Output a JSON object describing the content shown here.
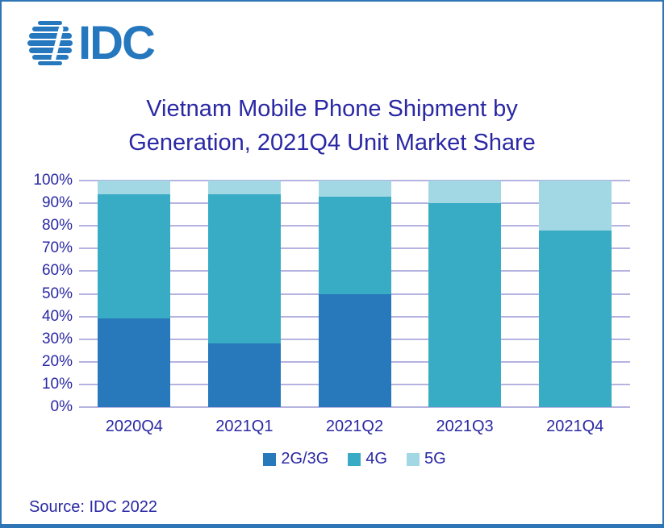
{
  "colors": {
    "brand-blue": "#2577BE",
    "border-blue": "#2E75B6",
    "text-navy": "#2A28A4",
    "grid-lavender": "#B5B3E0"
  },
  "logo": {
    "text": "IDC"
  },
  "title": {
    "line1": "Vietnam Mobile Phone Shipment by",
    "line2": "Generation, 2021Q4 Unit Market Share"
  },
  "source": "Source: IDC 2022",
  "chart_data": {
    "type": "bar",
    "stacked": true,
    "title": "Vietnam Mobile Phone Shipment by Generation, 2021Q4 Unit Market Share",
    "unit": "%",
    "categories": [
      "2020Q4",
      "2021Q1",
      "2021Q2",
      "2021Q3",
      "2021Q4"
    ],
    "series": [
      {
        "name": "2G/3G",
        "color": "#2878BC",
        "values": [
          39,
          28,
          50,
          0,
          0
        ]
      },
      {
        "name": "4G",
        "color": "#38ACC4",
        "values": [
          55,
          66,
          43,
          90,
          78
        ]
      },
      {
        "name": "5G",
        "color": "#A2D8E4",
        "values": [
          6,
          6,
          7,
          10,
          22
        ]
      }
    ],
    "ylim": [
      0,
      100
    ],
    "yticks": [
      0,
      10,
      20,
      30,
      40,
      50,
      60,
      70,
      80,
      90,
      100
    ],
    "grid": "horizontal",
    "legend_position": "bottom",
    "xlabel": "",
    "ylabel": ""
  }
}
